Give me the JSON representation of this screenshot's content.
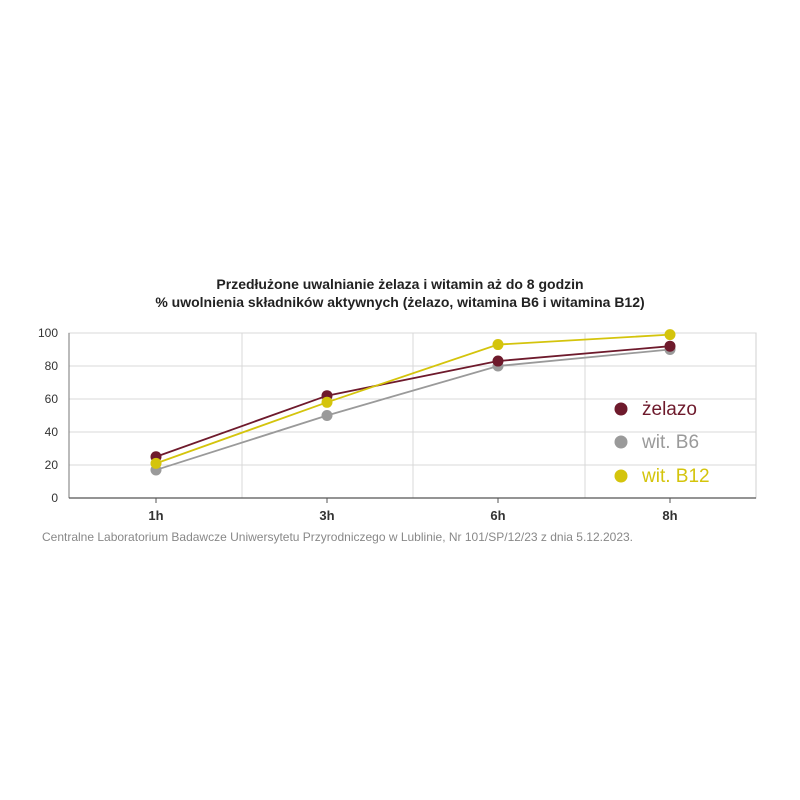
{
  "chart_data": {
    "type": "line",
    "title": "Przedłużone uwalnianie żelaza i witamin aż do 8 godzin",
    "subtitle": "% uwolnienia składników aktywnych (żelazo, witamina B6 i witamina B12)",
    "categories": [
      "1h",
      "3h",
      "6h",
      "8h"
    ],
    "ylim": [
      0,
      100
    ],
    "yticks": [
      "0",
      "20",
      "40",
      "60",
      "80",
      "100"
    ],
    "grid": true,
    "legend_position": "right",
    "series": [
      {
        "name": "żelazo",
        "values": [
          25,
          62,
          83,
          92
        ],
        "color": "#6e1a2c"
      },
      {
        "name": "wit. B6",
        "values": [
          17,
          50,
          80,
          90
        ],
        "color": "#9a9a9a"
      },
      {
        "name": "wit. B12",
        "values": [
          21,
          58,
          93,
          99
        ],
        "color": "#d4c40c"
      }
    ],
    "source": "Centralne Laboratorium Badawcze Uniwersytetu Przyrodniczego w Lublinie, Nr 101/SP/12/23 z dnia 5.12.2023."
  }
}
